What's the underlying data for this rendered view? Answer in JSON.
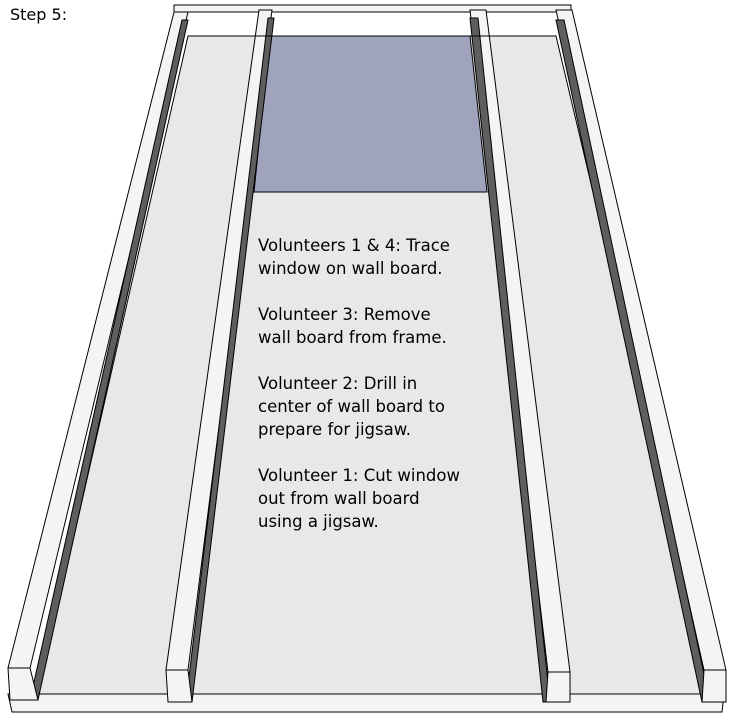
{
  "step_label": "Step 5:",
  "instructions": [
    {
      "lines": [
        "Volunteers 1 & 4: Trace",
        "window on wall board."
      ]
    },
    {
      "lines": [
        "Volunteer 3: Remove",
        "wall board from frame."
      ]
    },
    {
      "lines": [
        "Volunteer 2: Drill in",
        "center of wall board to",
        "prepare for jigsaw."
      ]
    },
    {
      "lines": [
        "Volunteer 1: Cut window",
        "out from wall board",
        "using a jigsaw."
      ]
    }
  ],
  "colors": {
    "wall_board": "#e8e8e8",
    "stud_face": "#f4f4f4",
    "stud_side": "#5e5e5e",
    "window_cutout": "#9fa3bb",
    "outline": "#000000"
  }
}
